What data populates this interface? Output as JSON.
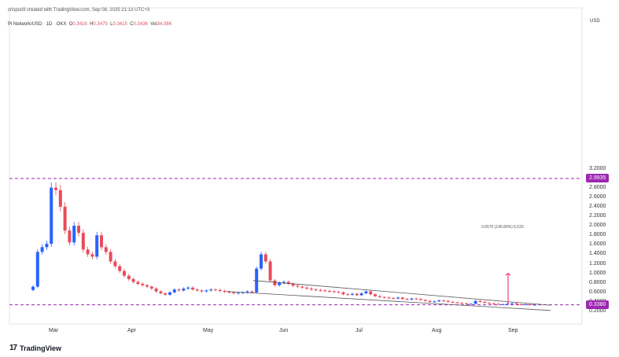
{
  "header": {
    "credit": "crispus9 created with TradingView.com, Sep 08, 2025 21:13 UTC+3",
    "symbol": "Pi Network/USD · 1D · OKX",
    "o_label": "O",
    "o_value": "0.3416",
    "h_label": "H",
    "h_value": "0.3475",
    "l_label": "L",
    "l_value": "0.3415",
    "c_label": "C",
    "c_value": "0.3436",
    "vol_label": "Vol",
    "vol_value": "34.08K"
  },
  "axis": {
    "currency": "USD",
    "y_ticks": [
      "3.2000",
      "2.8000",
      "2.6000",
      "2.4000",
      "2.2000",
      "2.0000",
      "1.8000",
      "1.6000",
      "1.4000",
      "1.2000",
      "1.0000",
      "0.8000",
      "0.6000",
      "0.4000",
      "0.2000"
    ],
    "badge_top": "2.9935",
    "badge_bottom": "0.3380",
    "x_ticks": [
      "Mar",
      "Apr",
      "May",
      "Jun",
      "Jul",
      "Aug",
      "Sep"
    ]
  },
  "annotation": {
    "measure_text": "0.6570 (196.80%) 6,520"
  },
  "brand": {
    "logo": "17",
    "name": "TradingView"
  },
  "colors": {
    "up": "#2962ff",
    "down": "#e84b5a",
    "dashed_level": "#9c27b0",
    "badge": "#9c27b0",
    "trendline": "#555555",
    "arrow": "#e91e63"
  },
  "chart_data": {
    "type": "candlestick",
    "x_ticks": [
      "Mar",
      "Apr",
      "May",
      "Jun",
      "Jul",
      "Aug",
      "Sep"
    ],
    "ylim": [
      0.2,
      3.2
    ],
    "levels": [
      2.9935,
      0.338
    ],
    "closes_approx": [
      0.72,
      1.45,
      1.55,
      1.62,
      2.8,
      2.75,
      2.4,
      1.9,
      1.65,
      2.0,
      1.85,
      1.5,
      1.4,
      1.35,
      1.8,
      1.55,
      1.45,
      1.25,
      1.15,
      1.05,
      0.95,
      0.88,
      0.82,
      0.78,
      0.75,
      0.72,
      0.68,
      0.62,
      0.58,
      0.55,
      0.6,
      0.66,
      0.64,
      0.68,
      0.7,
      0.66,
      0.64,
      0.62,
      0.64,
      0.66,
      0.65,
      0.63,
      0.61,
      0.6,
      0.58,
      0.59,
      0.6,
      0.62,
      0.6,
      1.1,
      1.4,
      1.25,
      0.85,
      0.75,
      0.8,
      0.82,
      0.78,
      0.74,
      0.72,
      0.7,
      0.68,
      0.66,
      0.65,
      0.64,
      0.63,
      0.62,
      0.61,
      0.6,
      0.56,
      0.55,
      0.57,
      0.54,
      0.58,
      0.62,
      0.56,
      0.52,
      0.5,
      0.49,
      0.48,
      0.47,
      0.49,
      0.46,
      0.45,
      0.47,
      0.46,
      0.44,
      0.42,
      0.4,
      0.41,
      0.43,
      0.42,
      0.4,
      0.39,
      0.38,
      0.37,
      0.36,
      0.36,
      0.42,
      0.4,
      0.38,
      0.37,
      0.36,
      0.35,
      0.35,
      0.36,
      0.37,
      0.35,
      0.34,
      0.35,
      0.34,
      0.34
    ]
  }
}
